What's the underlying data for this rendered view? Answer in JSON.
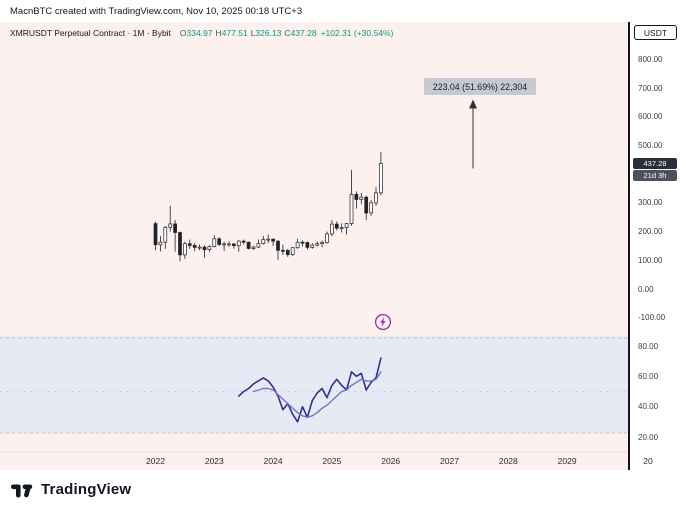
{
  "watermark": "MacnBTC created with TradingView.com, Nov 10, 2025 00:18 UTC+3",
  "header": {
    "symbol": "XMRUSDT Perpetual Contract · 1M · Bybit",
    "ohlc": [
      {
        "label": "O",
        "value": "334.97"
      },
      {
        "label": "H",
        "value": "477.51"
      },
      {
        "label": "L",
        "value": "326.13"
      },
      {
        "label": "C",
        "value": "437.28"
      }
    ],
    "change": "+102.31 (+30.54%)",
    "up_color": "#089981"
  },
  "price_axis": {
    "currency_button": "USDT",
    "labels": [
      "800.00",
      "700.00",
      "600.00",
      "500.00",
      "300.00",
      "200.00",
      "100.00",
      "0.00",
      "-100.00"
    ],
    "price_badge": {
      "value": "437.28",
      "bg": "#2a2e39"
    },
    "countdown_badge": {
      "value": "21d 3h",
      "bg": "#4c5160"
    }
  },
  "rsi_axis": {
    "labels": [
      "80.00",
      "60.00",
      "40.00",
      "20.00"
    ]
  },
  "time_axis": {
    "labels": [
      "2022",
      "2023",
      "2024",
      "2025",
      "2026",
      "2027",
      "2028",
      "2029",
      "20"
    ]
  },
  "annotation": {
    "text": "223.04 (51.69%) 22,304",
    "from_price": 420,
    "to_price": 650,
    "x_year": 2027.4,
    "color": "#2f3241"
  },
  "flash_marker": {
    "color": "#9c27b0"
  },
  "footer": {
    "brand": "TradingView"
  },
  "chart_data": {
    "type": "candlestick",
    "title": "XMRUSDT Perpetual Contract 1M Bybit",
    "price_pane": {
      "ylim": [
        -150,
        860
      ],
      "axis_values": [
        800,
        700,
        600,
        500,
        400,
        300,
        200,
        100,
        0,
        -100
      ],
      "last_price": 437.28,
      "grid": false
    },
    "candles": {
      "start_month": "2022-01",
      "interval": "1M",
      "colors": {
        "up_fill": "#ffffff",
        "down_fill": "#1e222d",
        "border": "#1e222d"
      },
      "ohlc": [
        [
          228,
          235,
          135,
          154
        ],
        [
          154,
          185,
          131,
          163
        ],
        [
          163,
          220,
          140,
          215
        ],
        [
          215,
          290,
          200,
          227
        ],
        [
          227,
          240,
          130,
          197
        ],
        [
          197,
          200,
          96,
          119
        ],
        [
          119,
          165,
          105,
          158
        ],
        [
          158,
          172,
          140,
          152
        ],
        [
          152,
          160,
          131,
          145
        ],
        [
          145,
          155,
          135,
          146
        ],
        [
          146,
          152,
          109,
          137
        ],
        [
          137,
          152,
          130,
          148
        ],
        [
          148,
          187,
          145,
          175
        ],
        [
          175,
          180,
          150,
          155
        ],
        [
          155,
          165,
          132,
          157
        ],
        [
          157,
          166,
          147,
          157
        ],
        [
          157,
          160,
          140,
          151
        ],
        [
          151,
          170,
          130,
          167
        ],
        [
          167,
          172,
          155,
          163
        ],
        [
          163,
          165,
          138,
          141
        ],
        [
          141,
          150,
          136,
          146
        ],
        [
          146,
          172,
          143,
          158
        ],
        [
          158,
          185,
          155,
          172
        ],
        [
          172,
          190,
          160,
          174
        ],
        [
          174,
          175,
          150,
          167
        ],
        [
          167,
          170,
          102,
          135
        ],
        [
          135,
          155,
          118,
          134
        ],
        [
          134,
          140,
          112,
          120
        ],
        [
          120,
          145,
          115,
          144
        ],
        [
          144,
          175,
          140,
          163
        ],
        [
          163,
          170,
          148,
          162
        ],
        [
          162,
          165,
          138,
          145
        ],
        [
          145,
          160,
          140,
          153
        ],
        [
          153,
          165,
          148,
          158
        ],
        [
          158,
          168,
          145,
          162
        ],
        [
          162,
          200,
          158,
          192
        ],
        [
          192,
          240,
          184,
          226
        ],
        [
          226,
          236,
          204,
          212
        ],
        [
          212,
          229,
          197,
          214
        ],
        [
          214,
          230,
          190,
          228
        ],
        [
          228,
          415,
          220,
          330
        ],
        [
          330,
          340,
          280,
          312
        ],
        [
          312,
          335,
          295,
          320
        ],
        [
          320,
          325,
          240,
          265
        ],
        [
          265,
          310,
          255,
          300
        ],
        [
          300,
          355,
          290,
          335
        ],
        [
          334.97,
          477.51,
          326.13,
          437.28
        ]
      ]
    },
    "rsi_pane": {
      "band": [
        23,
        82
      ],
      "band_color": "#e7eaf4",
      "axis_values": [
        80,
        60,
        40,
        20
      ],
      "series": [
        {
          "name": "RSI",
          "color": "#2a3590",
          "width": 1.6,
          "points": [
            [
              17,
              47
            ],
            [
              18,
              50
            ],
            [
              19,
              52
            ],
            [
              20,
              55
            ],
            [
              21,
              57
            ],
            [
              22,
              59
            ],
            [
              23,
              57
            ],
            [
              24,
              53
            ],
            [
              25,
              47
            ],
            [
              26,
              38
            ],
            [
              27,
              42
            ],
            [
              28,
              35
            ],
            [
              29,
              30
            ],
            [
              30,
              40
            ],
            [
              31,
              33
            ],
            [
              32,
              44
            ],
            [
              33,
              49
            ],
            [
              34,
              52
            ],
            [
              35,
              46
            ],
            [
              36,
              54
            ],
            [
              37,
              58
            ],
            [
              38,
              54
            ],
            [
              39,
              51
            ],
            [
              40,
              63
            ],
            [
              41,
              60
            ],
            [
              42,
              62
            ],
            [
              43,
              51
            ],
            [
              44,
              56
            ],
            [
              45,
              59
            ],
            [
              46,
              72
            ]
          ]
        },
        {
          "name": "RSI-MA",
          "color": "#6d79c7",
          "width": 1.4,
          "points": [
            [
              20,
              50
            ],
            [
              21,
              51
            ],
            [
              22,
              52
            ],
            [
              23,
              52
            ],
            [
              24,
              51
            ],
            [
              25,
              48
            ],
            [
              26,
              45
            ],
            [
              27,
              42
            ],
            [
              28,
              39
            ],
            [
              29,
              36
            ],
            [
              30,
              34
            ],
            [
              31,
              33
            ],
            [
              32,
              34
            ],
            [
              33,
              36
            ],
            [
              34,
              39
            ],
            [
              35,
              41
            ],
            [
              36,
              44
            ],
            [
              37,
              47
            ],
            [
              38,
              50
            ],
            [
              39,
              51
            ],
            [
              40,
              54
            ],
            [
              41,
              56
            ],
            [
              42,
              58
            ],
            [
              43,
              57
            ],
            [
              44,
              57
            ],
            [
              45,
              58
            ],
            [
              46,
              63
            ]
          ]
        }
      ]
    }
  }
}
